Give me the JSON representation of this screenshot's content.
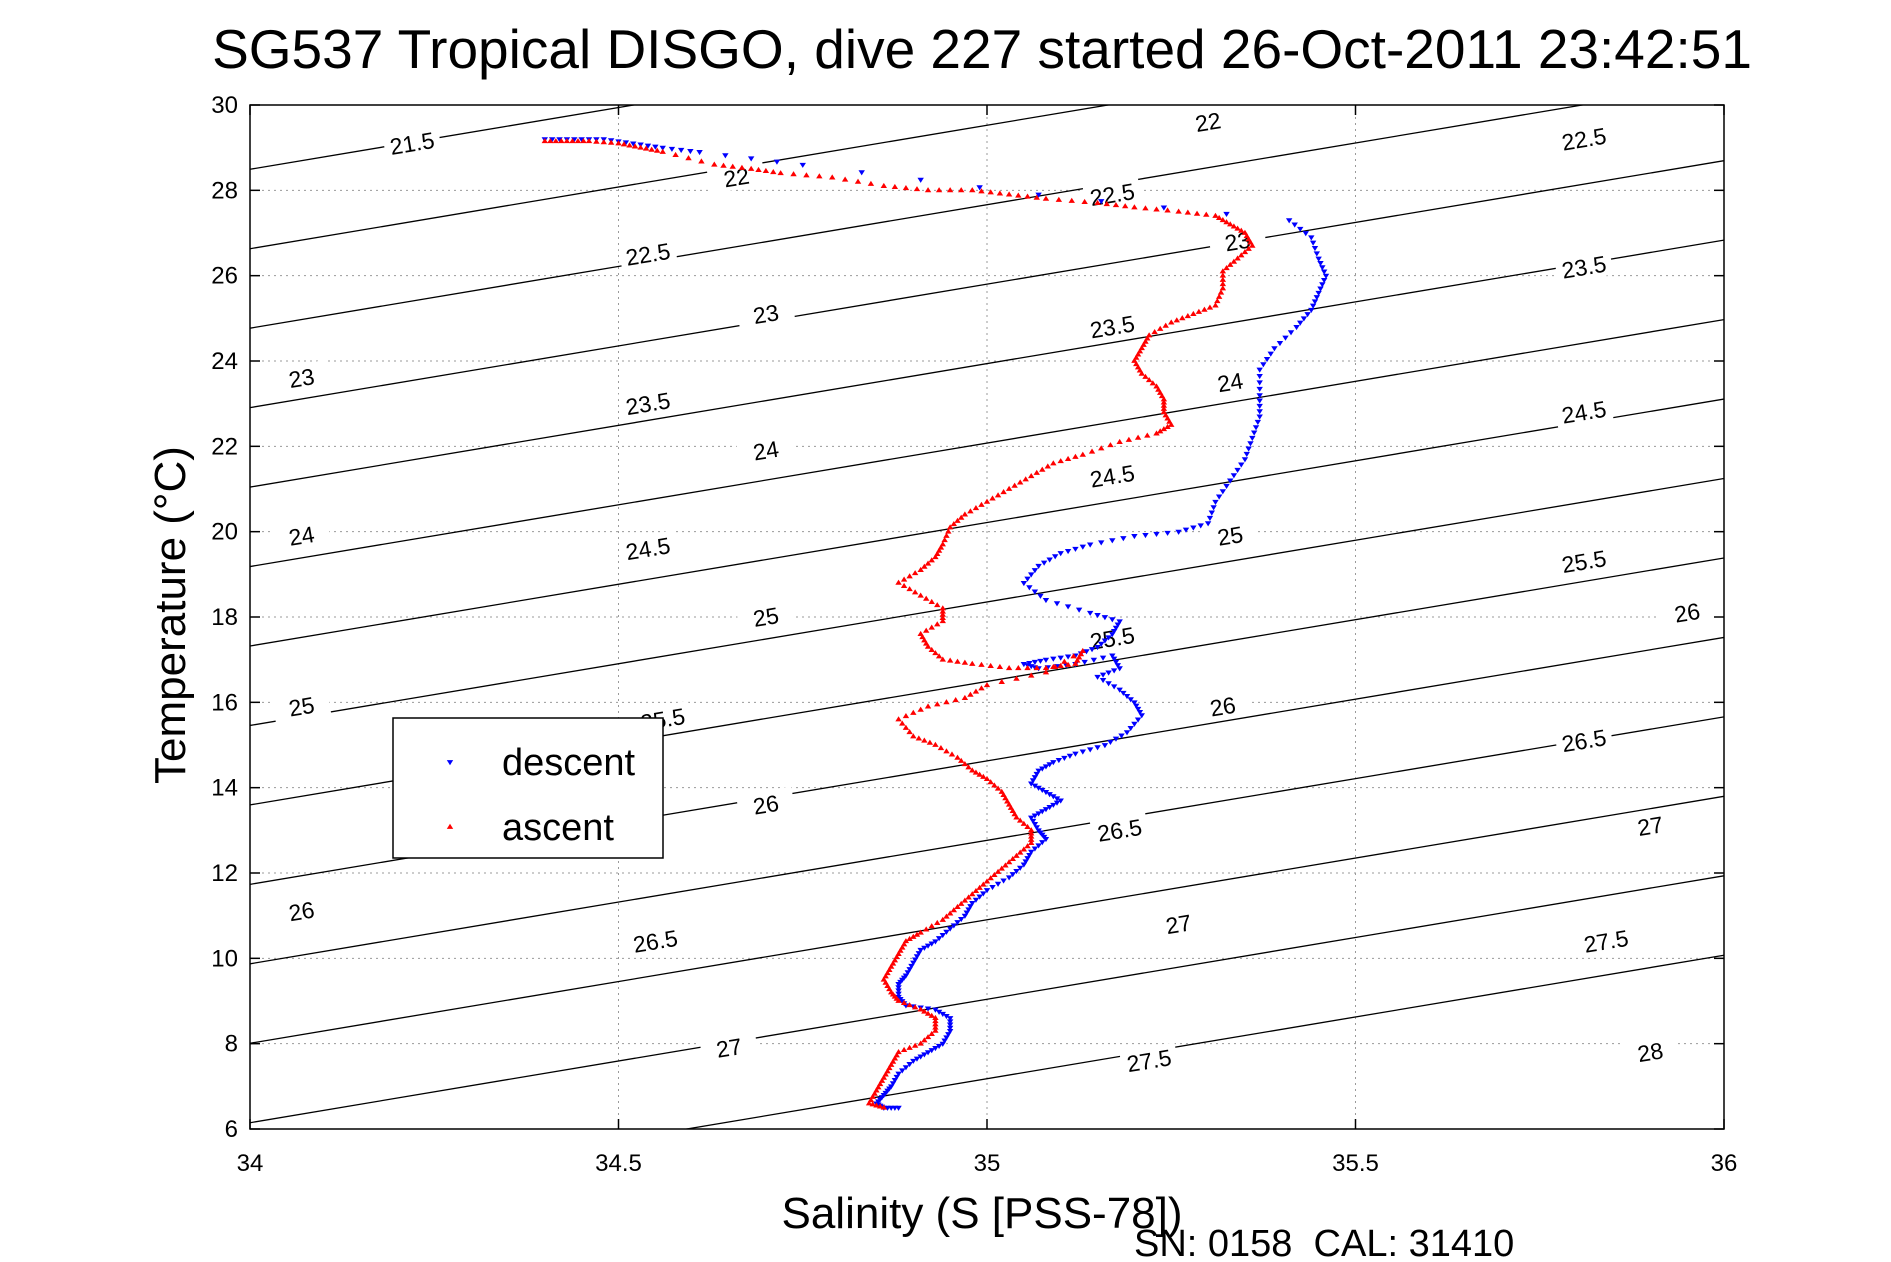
{
  "chart_data": {
    "type": "scatter",
    "title": "SG537 Tropical DISGO, dive 227 started 26-Oct-2011 23:42:51",
    "xlabel": "Salinity (S [PSS-78])",
    "ylabel": "Temperature (°C)",
    "footer": "SN: 0158  CAL: 31410",
    "xlim": [
      34,
      36
    ],
    "ylim": [
      6,
      30
    ],
    "x_ticks": [
      34,
      34.5,
      35,
      35.5,
      36
    ],
    "x_tick_labels": [
      "34",
      "34.5",
      "35",
      "35.5",
      "36"
    ],
    "y_ticks": [
      6,
      8,
      10,
      12,
      14,
      16,
      18,
      20,
      22,
      24,
      26,
      28,
      30
    ],
    "y_tick_labels": [
      "6",
      "8",
      "10",
      "12",
      "14",
      "16",
      "18",
      "20",
      "22",
      "24",
      "26",
      "28",
      "30"
    ],
    "grid": true,
    "legend_position": "left-middle",
    "contours": {
      "description": "density anomaly isopycnals",
      "levels": [
        21.5,
        22,
        22.5,
        23,
        23.5,
        24,
        24.5,
        25,
        25.5,
        26,
        26.5,
        27,
        27.5,
        28
      ],
      "labels": [
        {
          "text": "21.5",
          "S": 34.22,
          "T": 29.1
        },
        {
          "text": "22",
          "S": 34.66,
          "T": 28.3
        },
        {
          "text": "22.5",
          "S": 34.54,
          "T": 26.5
        },
        {
          "text": "23",
          "S": 34.07,
          "T": 23.6
        },
        {
          "text": "23",
          "S": 34.7,
          "T": 25.1
        },
        {
          "text": "23.5",
          "S": 34.54,
          "T": 23.0
        },
        {
          "text": "24",
          "S": 34.07,
          "T": 19.9
        },
        {
          "text": "24",
          "S": 34.7,
          "T": 21.9
        },
        {
          "text": "24.5",
          "S": 34.54,
          "T": 19.6
        },
        {
          "text": "25",
          "S": 34.07,
          "T": 15.9
        },
        {
          "text": "25",
          "S": 34.7,
          "T": 18.0
        },
        {
          "text": "25.5",
          "S": 34.56,
          "T": 15.6
        },
        {
          "text": "26",
          "S": 34.07,
          "T": 11.1
        },
        {
          "text": "26",
          "S": 34.7,
          "T": 13.6
        },
        {
          "text": "26.5",
          "S": 34.55,
          "T": 10.4
        },
        {
          "text": "27",
          "S": 34.65,
          "T": 7.9
        },
        {
          "text": "22",
          "S": 35.3,
          "T": 29.6
        },
        {
          "text": "22.5",
          "S": 35.17,
          "T": 27.9
        },
        {
          "text": "23",
          "S": 35.34,
          "T": 26.8
        },
        {
          "text": "23.5",
          "S": 35.17,
          "T": 24.8
        },
        {
          "text": "24",
          "S": 35.33,
          "T": 23.5
        },
        {
          "text": "24.5",
          "S": 35.17,
          "T": 21.3
        },
        {
          "text": "25",
          "S": 35.33,
          "T": 19.9
        },
        {
          "text": "25.5",
          "S": 35.17,
          "T": 17.5
        },
        {
          "text": "26",
          "S": 35.32,
          "T": 15.9
        },
        {
          "text": "26.5",
          "S": 35.18,
          "T": 13.0
        },
        {
          "text": "27",
          "S": 35.26,
          "T": 10.8
        },
        {
          "text": "27.5",
          "S": 35.22,
          "T": 7.6
        },
        {
          "text": "22.5",
          "S": 35.81,
          "T": 29.2
        },
        {
          "text": "23.5",
          "S": 35.81,
          "T": 26.2
        },
        {
          "text": "24.5",
          "S": 35.81,
          "T": 22.8
        },
        {
          "text": "25.5",
          "S": 35.81,
          "T": 19.3
        },
        {
          "text": "26",
          "S": 35.95,
          "T": 18.1
        },
        {
          "text": "26.5",
          "S": 35.81,
          "T": 15.1
        },
        {
          "text": "27",
          "S": 35.9,
          "T": 13.1
        },
        {
          "text": "27.5",
          "S": 35.84,
          "T": 10.4
        },
        {
          "text": "28",
          "S": 35.9,
          "T": 7.8
        }
      ]
    },
    "series": [
      {
        "name": "descent",
        "marker": "triangle-down",
        "color": "#0000ff",
        "points": [
          [
            34.4,
            29.2
          ],
          [
            34.44,
            29.2
          ],
          [
            34.48,
            29.2
          ],
          [
            34.52,
            29.1
          ],
          [
            34.56,
            29.0
          ],
          [
            34.61,
            28.9
          ],
          [
            34.75,
            28.6
          ],
          [
            35.07,
            27.9
          ],
          [
            35.41,
            27.3
          ],
          [
            35.44,
            26.9
          ],
          [
            35.45,
            26.4
          ],
          [
            35.46,
            26.0
          ],
          [
            35.45,
            25.6
          ],
          [
            35.44,
            25.2
          ],
          [
            35.42,
            24.8
          ],
          [
            35.39,
            24.3
          ],
          [
            35.37,
            23.8
          ],
          [
            35.37,
            23.2
          ],
          [
            35.37,
            22.7
          ],
          [
            35.36,
            22.2
          ],
          [
            35.35,
            21.7
          ],
          [
            35.33,
            21.2
          ],
          [
            35.31,
            20.7
          ],
          [
            35.3,
            20.2
          ],
          [
            35.26,
            20.0
          ],
          [
            35.2,
            19.9
          ],
          [
            35.14,
            19.7
          ],
          [
            35.1,
            19.5
          ],
          [
            35.07,
            19.2
          ],
          [
            35.05,
            18.8
          ],
          [
            35.08,
            18.4
          ],
          [
            35.14,
            18.1
          ],
          [
            35.18,
            17.9
          ],
          [
            35.17,
            17.6
          ],
          [
            35.15,
            17.3
          ],
          [
            35.12,
            17.1
          ],
          [
            35.08,
            17.0
          ],
          [
            35.05,
            16.9
          ],
          [
            35.07,
            16.8
          ],
          [
            35.12,
            16.9
          ],
          [
            35.17,
            17.1
          ],
          [
            35.18,
            16.8
          ],
          [
            35.15,
            16.6
          ],
          [
            35.18,
            16.3
          ],
          [
            35.2,
            16.0
          ],
          [
            35.21,
            15.7
          ],
          [
            35.19,
            15.3
          ],
          [
            35.16,
            15.0
          ],
          [
            35.12,
            14.8
          ],
          [
            35.09,
            14.6
          ],
          [
            35.07,
            14.4
          ],
          [
            35.06,
            14.1
          ],
          [
            35.08,
            13.9
          ],
          [
            35.1,
            13.7
          ],
          [
            35.08,
            13.5
          ],
          [
            35.06,
            13.3
          ],
          [
            35.07,
            13.0
          ],
          [
            35.08,
            12.8
          ],
          [
            35.06,
            12.5
          ],
          [
            35.05,
            12.2
          ],
          [
            35.03,
            11.9
          ],
          [
            35.0,
            11.6
          ],
          [
            34.98,
            11.3
          ],
          [
            34.97,
            11.0
          ],
          [
            34.95,
            10.7
          ],
          [
            34.93,
            10.4
          ],
          [
            34.91,
            10.2
          ],
          [
            34.9,
            9.9
          ],
          [
            34.89,
            9.6
          ],
          [
            34.88,
            9.4
          ],
          [
            34.88,
            9.1
          ],
          [
            34.89,
            8.9
          ],
          [
            34.93,
            8.8
          ],
          [
            34.95,
            8.6
          ],
          [
            34.95,
            8.3
          ],
          [
            34.94,
            8.0
          ],
          [
            34.92,
            7.8
          ],
          [
            34.9,
            7.6
          ],
          [
            34.88,
            7.3
          ],
          [
            34.87,
            7.0
          ],
          [
            34.86,
            6.8
          ],
          [
            34.85,
            6.6
          ],
          [
            34.86,
            6.5
          ],
          [
            34.88,
            6.5
          ]
        ]
      },
      {
        "name": "ascent",
        "marker": "triangle-up",
        "color": "#ff0000",
        "points": [
          [
            34.4,
            29.15
          ],
          [
            34.43,
            29.15
          ],
          [
            34.46,
            29.15
          ],
          [
            34.5,
            29.1
          ],
          [
            34.53,
            29.0
          ],
          [
            34.56,
            28.9
          ],
          [
            34.63,
            28.6
          ],
          [
            34.68,
            28.5
          ],
          [
            34.72,
            28.4
          ],
          [
            34.79,
            28.3
          ],
          [
            34.86,
            28.1
          ],
          [
            34.92,
            28.0
          ],
          [
            34.98,
            28.0
          ],
          [
            35.03,
            27.9
          ],
          [
            35.08,
            27.8
          ],
          [
            35.15,
            27.7
          ],
          [
            35.2,
            27.6
          ],
          [
            35.26,
            27.5
          ],
          [
            35.31,
            27.4
          ],
          [
            35.33,
            27.2
          ],
          [
            35.35,
            27.0
          ],
          [
            35.36,
            26.7
          ],
          [
            35.34,
            26.4
          ],
          [
            35.32,
            26.1
          ],
          [
            35.32,
            25.7
          ],
          [
            35.31,
            25.3
          ],
          [
            35.28,
            25.1
          ],
          [
            35.25,
            24.9
          ],
          [
            35.22,
            24.6
          ],
          [
            35.21,
            24.3
          ],
          [
            35.2,
            24.0
          ],
          [
            35.21,
            23.7
          ],
          [
            35.23,
            23.4
          ],
          [
            35.24,
            23.1
          ],
          [
            35.24,
            22.8
          ],
          [
            35.25,
            22.5
          ],
          [
            35.23,
            22.3
          ],
          [
            35.18,
            22.1
          ],
          [
            35.13,
            21.8
          ],
          [
            35.09,
            21.6
          ],
          [
            35.06,
            21.3
          ],
          [
            35.03,
            21.0
          ],
          [
            35.0,
            20.7
          ],
          [
            34.97,
            20.4
          ],
          [
            34.95,
            20.1
          ],
          [
            34.94,
            19.7
          ],
          [
            34.93,
            19.4
          ],
          [
            34.91,
            19.1
          ],
          [
            34.88,
            18.8
          ],
          [
            34.91,
            18.5
          ],
          [
            34.94,
            18.2
          ],
          [
            34.94,
            17.9
          ],
          [
            34.91,
            17.6
          ],
          [
            34.92,
            17.3
          ],
          [
            34.94,
            17.0
          ],
          [
            34.98,
            16.9
          ],
          [
            35.03,
            16.8
          ],
          [
            35.08,
            16.8
          ],
          [
            35.12,
            16.9
          ],
          [
            35.13,
            17.2
          ],
          [
            35.08,
            16.7
          ],
          [
            35.0,
            16.4
          ],
          [
            34.97,
            16.1
          ],
          [
            34.92,
            15.9
          ],
          [
            34.88,
            15.6
          ],
          [
            34.9,
            15.2
          ],
          [
            34.93,
            15.0
          ],
          [
            34.96,
            14.7
          ],
          [
            34.98,
            14.4
          ],
          [
            35.0,
            14.2
          ],
          [
            35.02,
            13.9
          ],
          [
            35.03,
            13.6
          ],
          [
            35.04,
            13.3
          ],
          [
            35.06,
            13.0
          ],
          [
            35.06,
            12.7
          ],
          [
            35.04,
            12.4
          ],
          [
            35.02,
            12.1
          ],
          [
            35.0,
            11.8
          ],
          [
            34.98,
            11.5
          ],
          [
            34.96,
            11.2
          ],
          [
            34.94,
            10.9
          ],
          [
            34.91,
            10.6
          ],
          [
            34.89,
            10.4
          ],
          [
            34.88,
            10.1
          ],
          [
            34.87,
            9.8
          ],
          [
            34.86,
            9.5
          ],
          [
            34.87,
            9.2
          ],
          [
            34.88,
            9.0
          ],
          [
            34.91,
            8.8
          ],
          [
            34.93,
            8.6
          ],
          [
            34.93,
            8.3
          ],
          [
            34.91,
            8.0
          ],
          [
            34.88,
            7.8
          ],
          [
            34.87,
            7.5
          ],
          [
            34.86,
            7.2
          ],
          [
            34.85,
            6.9
          ],
          [
            34.84,
            6.6
          ],
          [
            34.86,
            6.5
          ]
        ]
      }
    ]
  }
}
